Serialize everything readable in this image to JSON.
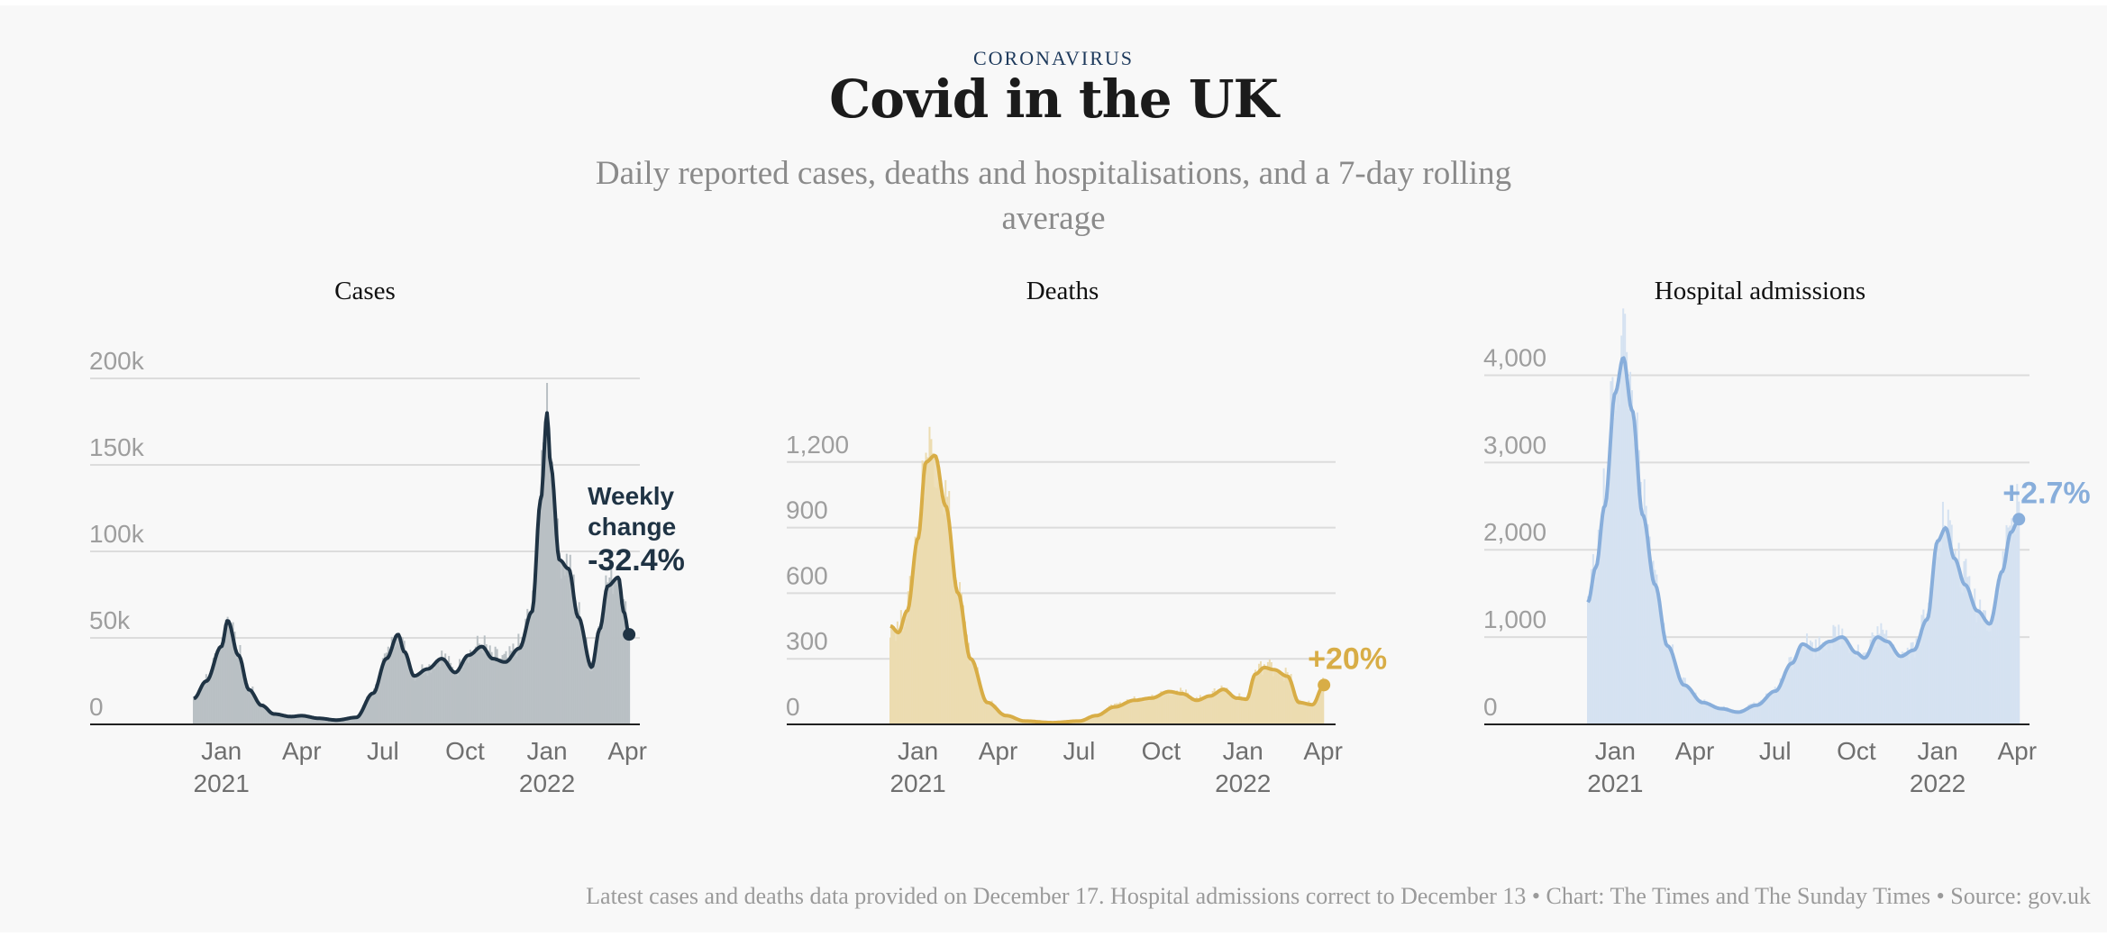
{
  "header": {
    "kicker": "CORONAVIRUS",
    "title": "Covid in the UK",
    "subtitle": "Daily reported cases, deaths and hospitalisations, and a 7-day rolling average"
  },
  "footer": "Latest cases and deaths data provided on December 17. Hospital admissions correct to December 13 • Chart: The Times and The Sunday Times • Source: gov.uk",
  "chart_data": [
    {
      "type": "area",
      "title": "Cases",
      "color": "#1f3344",
      "bar_color": "#b9c0c4",
      "ylim": [
        0,
        200000
      ],
      "yticks": [
        0,
        50000,
        100000,
        150000,
        200000
      ],
      "ytick_labels": [
        "0",
        "50k",
        "100k",
        "150k",
        "200k"
      ],
      "xlim": [
        "2020-12-01",
        "2022-04-15"
      ],
      "xticks": [
        "2021-01-01",
        "2021-04-01",
        "2021-07-01",
        "2021-10-01",
        "2022-01-01",
        "2022-04-01"
      ],
      "xtick_labels": [
        "Jan",
        "Apr",
        "Jul",
        "Oct",
        "Jan",
        "Apr"
      ],
      "xtick_years": [
        "2021",
        "",
        "",
        "",
        "2022",
        ""
      ],
      "annotation": {
        "lines": [
          "Weekly",
          "change"
        ],
        "value": "-32.4%"
      },
      "series": [
        {
          "x": [
            "2020-12-01",
            "2020-12-15",
            "2021-01-01",
            "2021-01-08",
            "2021-01-20",
            "2021-02-01",
            "2021-02-15",
            "2021-03-01",
            "2021-03-20",
            "2021-04-01",
            "2021-04-20",
            "2021-05-10",
            "2021-06-01",
            "2021-06-20",
            "2021-07-05",
            "2021-07-18",
            "2021-07-25",
            "2021-08-05",
            "2021-08-20",
            "2021-09-05",
            "2021-09-20",
            "2021-10-05",
            "2021-10-20",
            "2021-11-01",
            "2021-11-15",
            "2021-12-01",
            "2021-12-15",
            "2021-12-25",
            "2022-01-01",
            "2022-01-05",
            "2022-01-15",
            "2022-01-25",
            "2022-02-05",
            "2022-02-20",
            "2022-03-01",
            "2022-03-10",
            "2022-03-22",
            "2022-03-28",
            "2022-04-03"
          ],
          "y": [
            15000,
            25000,
            45000,
            60000,
            40000,
            20000,
            11000,
            6000,
            4500,
            5000,
            3500,
            2500,
            4000,
            18000,
            38000,
            52000,
            42000,
            28000,
            32000,
            38000,
            30000,
            40000,
            45000,
            38000,
            36000,
            44000,
            65000,
            130000,
            180000,
            150000,
            95000,
            90000,
            62000,
            33000,
            55000,
            80000,
            85000,
            65000,
            52000
          ]
        }
      ]
    },
    {
      "type": "area",
      "title": "Deaths",
      "color": "#d8ad46",
      "bar_color": "#ecdcb0",
      "ylim": [
        0,
        1500
      ],
      "yticks": [
        0,
        300,
        600,
        900,
        1200
      ],
      "ytick_labels": [
        "0",
        "300",
        "600",
        "900",
        "1,200"
      ],
      "xlim": [
        "2020-12-01",
        "2022-04-15"
      ],
      "xticks": [
        "2021-01-01",
        "2021-04-01",
        "2021-07-01",
        "2021-10-01",
        "2022-01-01",
        "2022-04-01"
      ],
      "xtick_labels": [
        "Jan",
        "Apr",
        "Jul",
        "Oct",
        "Jan",
        "Apr"
      ],
      "xtick_years": [
        "2021",
        "",
        "",
        "",
        "2022",
        ""
      ],
      "annotation": {
        "lines": [],
        "value": "+20%"
      },
      "series": [
        {
          "x": [
            "2020-12-01",
            "2020-12-10",
            "2020-12-20",
            "2021-01-01",
            "2021-01-10",
            "2021-01-20",
            "2021-02-01",
            "2021-02-15",
            "2021-03-01",
            "2021-03-20",
            "2021-04-10",
            "2021-05-01",
            "2021-06-01",
            "2021-07-01",
            "2021-07-20",
            "2021-08-10",
            "2021-09-01",
            "2021-09-20",
            "2021-10-10",
            "2021-10-25",
            "2021-11-10",
            "2021-11-25",
            "2021-12-10",
            "2021-12-25",
            "2022-01-05",
            "2022-01-15",
            "2022-01-25",
            "2022-02-05",
            "2022-02-20",
            "2022-03-05",
            "2022-03-20",
            "2022-04-02"
          ],
          "y": [
            450,
            420,
            520,
            850,
            1200,
            1230,
            1000,
            600,
            300,
            100,
            40,
            15,
            8,
            15,
            40,
            80,
            110,
            120,
            150,
            140,
            110,
            130,
            160,
            120,
            115,
            230,
            260,
            250,
            220,
            100,
            90,
            180
          ]
        }
      ]
    },
    {
      "type": "area",
      "title": "Hospital admissions",
      "color": "#88aedb",
      "bar_color": "#d5e2f1",
      "ylim": [
        0,
        4500
      ],
      "yticks": [
        0,
        1000,
        2000,
        3000,
        4000
      ],
      "ytick_labels": [
        "0",
        "1,000",
        "2,000",
        "3,000",
        "4,000"
      ],
      "xlim": [
        "2020-12-01",
        "2022-04-15"
      ],
      "xticks": [
        "2021-01-01",
        "2021-04-01",
        "2021-07-01",
        "2021-10-01",
        "2022-01-01",
        "2022-04-01"
      ],
      "xtick_labels": [
        "Jan",
        "Apr",
        "Jul",
        "Oct",
        "Jan",
        "Apr"
      ],
      "xtick_years": [
        "2021",
        "",
        "",
        "",
        "2022",
        ""
      ],
      "annotation": {
        "lines": [],
        "value": "+2.7%"
      },
      "series": [
        {
          "x": [
            "2020-12-01",
            "2020-12-10",
            "2020-12-20",
            "2021-01-01",
            "2021-01-10",
            "2021-01-20",
            "2021-02-01",
            "2021-02-15",
            "2021-03-01",
            "2021-03-20",
            "2021-04-10",
            "2021-05-01",
            "2021-05-20",
            "2021-06-10",
            "2021-07-01",
            "2021-07-20",
            "2021-08-01",
            "2021-08-15",
            "2021-09-01",
            "2021-09-15",
            "2021-10-01",
            "2021-10-10",
            "2021-10-25",
            "2021-11-05",
            "2021-11-20",
            "2021-12-05",
            "2021-12-20",
            "2022-01-01",
            "2022-01-10",
            "2022-01-20",
            "2022-02-01",
            "2022-02-15",
            "2022-03-01",
            "2022-03-15",
            "2022-03-25",
            "2022-04-03"
          ],
          "y": [
            1400,
            1800,
            2500,
            3800,
            4200,
            3600,
            2400,
            1600,
            900,
            450,
            250,
            180,
            140,
            220,
            380,
            700,
            920,
            850,
            950,
            1000,
            820,
            760,
            1000,
            950,
            780,
            850,
            1200,
            2100,
            2250,
            1900,
            1600,
            1300,
            1150,
            1750,
            2200,
            2350
          ]
        }
      ]
    }
  ]
}
